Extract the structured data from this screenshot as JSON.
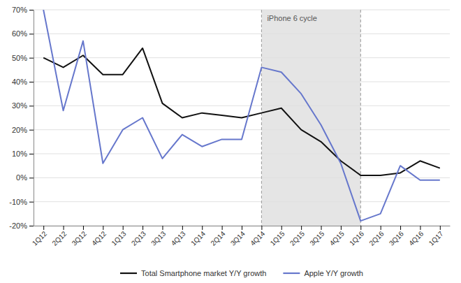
{
  "chart_data": {
    "type": "line",
    "categories": [
      "1Q12",
      "2Q12",
      "3Q12",
      "4Q12",
      "1Q13",
      "2Q13",
      "3Q13",
      "4Q13",
      "1Q14",
      "2Q14",
      "3Q14",
      "4Q14",
      "1Q15",
      "2Q15",
      "3Q15",
      "4Q15",
      "1Q16",
      "2Q16",
      "3Q16",
      "4Q16",
      "1Q17"
    ],
    "series": [
      {
        "name": "Total Smartphone market Y/Y growth",
        "color": "#111111",
        "values": [
          50,
          46,
          51,
          43,
          43,
          54,
          31,
          25,
          27,
          26,
          25,
          27,
          29,
          20,
          15,
          7,
          1,
          1,
          2,
          7,
          4
        ]
      },
      {
        "name": "Apple Y/Y growth",
        "color": "#6677cc",
        "values": [
          70,
          28,
          57,
          6,
          20,
          25,
          8,
          18,
          13,
          16,
          16,
          46,
          44,
          35,
          22,
          6,
          -18,
          -15,
          5,
          -1,
          -1
        ]
      }
    ],
    "shaded_range": [
      "4Q14",
      "1Q16"
    ],
    "annotations": [
      {
        "text": "iPhone 6 cycle"
      }
    ],
    "ylim": [
      -20,
      70
    ],
    "yticks": [
      {
        "value": -20,
        "label": "-20%"
      },
      {
        "value": -10,
        "label": "-10%"
      },
      {
        "value": 0,
        "label": "0%"
      },
      {
        "value": 10,
        "label": "10%"
      },
      {
        "value": 20,
        "label": "20%"
      },
      {
        "value": 30,
        "label": "30%"
      },
      {
        "value": 40,
        "label": "40%"
      },
      {
        "value": 50,
        "label": "50%"
      },
      {
        "value": 60,
        "label": "60%"
      },
      {
        "value": 70,
        "label": "70%"
      }
    ],
    "grid": true,
    "legend": "bottom"
  }
}
